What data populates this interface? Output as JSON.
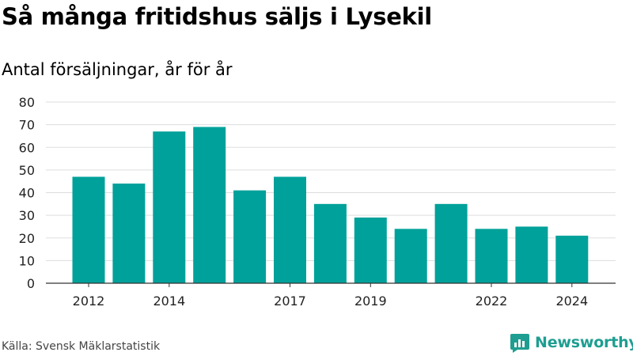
{
  "title": "Så många fritidshus säljs i Lysekil",
  "subtitle": "Antal försäljningar, år för år",
  "source": "Källa: Svensk Mäklarstatistik",
  "brand": {
    "name": "Newsworthy",
    "icon": "newsworthy-logo-icon",
    "color": "#1e9e91"
  },
  "colors": {
    "bar": "#00a19a",
    "grid": "#dddddd",
    "axis": "#333333"
  },
  "chart_data": {
    "type": "bar",
    "x": [
      2012,
      2013,
      2014,
      2015,
      2016,
      2017,
      2018,
      2019,
      2020,
      2021,
      2022,
      2023,
      2024
    ],
    "values": [
      47,
      44,
      67,
      69,
      41,
      47,
      35,
      29,
      24,
      35,
      24,
      25,
      21
    ],
    "xticks": [
      2012,
      2014,
      2017,
      2019,
      2022,
      2024
    ],
    "ylim": [
      0,
      80
    ],
    "yticks": [
      0,
      10,
      20,
      30,
      40,
      50,
      60,
      70,
      80
    ],
    "grid": true,
    "xlabel": "",
    "ylabel": ""
  }
}
